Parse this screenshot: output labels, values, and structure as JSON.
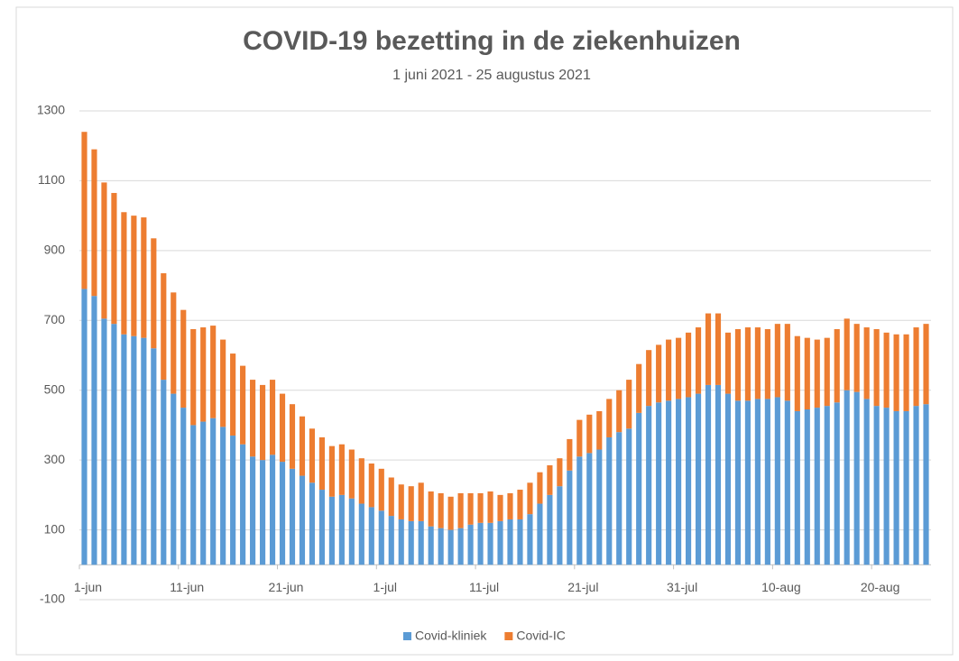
{
  "chart_data": {
    "type": "stacked_bar",
    "title": "COVID-19 bezetting in de ziekenhuizen",
    "subtitle": "1 juni 2021 - 25 augustus 2021",
    "categories": [
      "1-jun",
      null,
      null,
      null,
      null,
      null,
      null,
      null,
      null,
      null,
      "11-jun",
      null,
      null,
      null,
      null,
      null,
      null,
      null,
      null,
      null,
      "21-jun",
      null,
      null,
      null,
      null,
      null,
      null,
      null,
      null,
      null,
      "1-jul",
      null,
      null,
      null,
      null,
      null,
      null,
      null,
      null,
      null,
      "11-jul",
      null,
      null,
      null,
      null,
      null,
      null,
      null,
      null,
      null,
      "21-jul",
      null,
      null,
      null,
      null,
      null,
      null,
      null,
      null,
      null,
      "31-jul",
      null,
      null,
      null,
      null,
      null,
      null,
      null,
      null,
      null,
      "10-aug",
      null,
      null,
      null,
      null,
      null,
      null,
      null,
      null,
      null,
      "20-aug",
      null,
      null,
      null,
      null,
      null
    ],
    "series": [
      {
        "name": "Covid-kliniek",
        "color": "#5b9bd5",
        "values": [
          790,
          770,
          705,
          690,
          660,
          655,
          650,
          620,
          530,
          490,
          450,
          400,
          410,
          420,
          395,
          370,
          345,
          310,
          300,
          315,
          295,
          275,
          255,
          235,
          215,
          195,
          200,
          190,
          175,
          165,
          155,
          140,
          130,
          125,
          125,
          110,
          105,
          100,
          105,
          115,
          120,
          120,
          125,
          130,
          130,
          145,
          175,
          200,
          225,
          270,
          310,
          320,
          330,
          365,
          380,
          390,
          435,
          455,
          465,
          470,
          475,
          480,
          490,
          515,
          515,
          490,
          470,
          470,
          475,
          475,
          480,
          470,
          440,
          445,
          450,
          455,
          465,
          500,
          495,
          475,
          455,
          450,
          440,
          440,
          455,
          460
        ]
      },
      {
        "name": "Covid-IC",
        "color": "#ed7d31",
        "values": [
          450,
          420,
          390,
          375,
          350,
          345,
          345,
          315,
          305,
          290,
          280,
          275,
          270,
          265,
          250,
          235,
          225,
          220,
          215,
          215,
          195,
          185,
          170,
          155,
          150,
          145,
          145,
          140,
          130,
          125,
          120,
          110,
          100,
          100,
          110,
          100,
          100,
          95,
          100,
          90,
          85,
          90,
          75,
          75,
          85,
          90,
          90,
          85,
          80,
          90,
          105,
          110,
          110,
          110,
          120,
          140,
          140,
          160,
          165,
          175,
          175,
          185,
          190,
          205,
          205,
          175,
          205,
          210,
          205,
          200,
          210,
          220,
          215,
          205,
          195,
          195,
          210,
          205,
          195,
          205,
          220,
          215,
          220,
          220,
          225,
          230
        ]
      }
    ],
    "ylim": [
      -100,
      1300
    ],
    "yticks": [
      -100,
      100,
      300,
      500,
      700,
      900,
      1100,
      1300
    ],
    "grid": true,
    "legend": "bottom"
  }
}
